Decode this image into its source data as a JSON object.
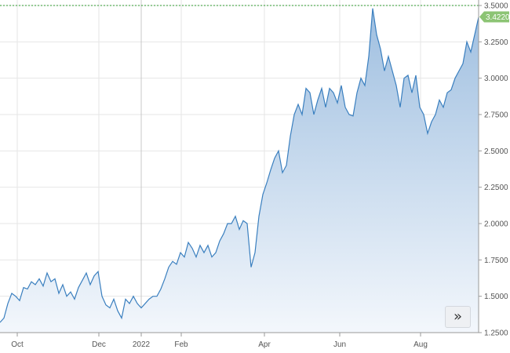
{
  "chart_data": {
    "type": "area",
    "title": "",
    "xlabel": "",
    "ylabel": "",
    "ylim": [
      1.25,
      3.5
    ],
    "grid": true,
    "x_tick_labels": [
      "Oct",
      "Dec",
      "2022",
      "Feb",
      "Apr",
      "Jun",
      "Aug"
    ],
    "y_tick_labels": [
      "3.5000",
      "3.2500",
      "3.0000",
      "2.7500",
      "2.5000",
      "2.2500",
      "2.0000",
      "1.7500",
      "1.5000",
      "1.2500"
    ],
    "y_ticks": [
      3.5,
      3.25,
      3.0,
      2.75,
      2.5,
      2.25,
      2.0,
      1.75,
      1.5,
      1.25
    ],
    "last_value": 3.422,
    "last_value_label": "3.4220",
    "reference_line": 3.5,
    "colors": {
      "line": "#3a7fbf",
      "fill_top": "#9fbfe0",
      "fill_bottom": "#f3f7fc",
      "badge": "#8cc474",
      "reference": "#2e9b2e"
    },
    "series": [
      {
        "values": [
          1.32,
          1.35,
          1.45,
          1.52,
          1.5,
          1.47,
          1.56,
          1.55,
          1.6,
          1.58,
          1.62,
          1.57,
          1.66,
          1.6,
          1.62,
          1.52,
          1.58,
          1.5,
          1.53,
          1.48,
          1.56,
          1.61,
          1.66,
          1.58,
          1.64,
          1.67,
          1.5,
          1.44,
          1.42,
          1.48,
          1.4,
          1.35,
          1.48,
          1.45,
          1.5,
          1.45,
          1.42,
          1.45,
          1.48,
          1.5,
          1.5,
          1.55,
          1.62,
          1.7,
          1.74,
          1.72,
          1.8,
          1.77,
          1.87,
          1.83,
          1.77,
          1.85,
          1.8,
          1.85,
          1.77,
          1.8,
          1.88,
          1.93,
          2.0,
          2.0,
          2.05,
          1.96,
          2.02,
          2.0,
          1.7,
          1.8,
          2.05,
          2.2,
          2.28,
          2.37,
          2.45,
          2.5,
          2.35,
          2.4,
          2.6,
          2.75,
          2.82,
          2.75,
          2.93,
          2.9,
          2.75,
          2.85,
          2.93,
          2.8,
          2.93,
          2.9,
          2.83,
          2.95,
          2.8,
          2.75,
          2.74,
          2.9,
          3.0,
          2.95,
          3.15,
          3.48,
          3.3,
          3.2,
          3.05,
          3.15,
          3.05,
          2.95,
          2.8,
          3.0,
          3.02,
          2.9,
          3.02,
          2.8,
          2.75,
          2.62,
          2.7,
          2.75,
          2.85,
          2.8,
          2.9,
          2.92,
          3.0,
          3.05,
          3.1,
          3.25,
          3.18,
          3.3,
          3.42
        ]
      }
    ]
  },
  "controls": {
    "scroll_right_symbol": "»"
  }
}
